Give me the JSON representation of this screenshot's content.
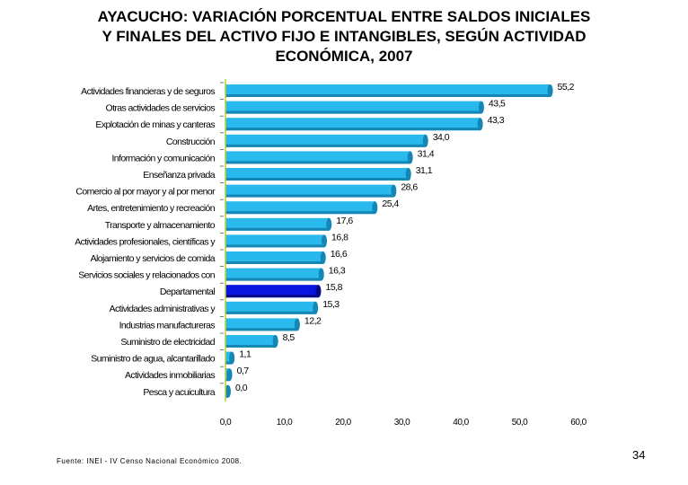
{
  "title": "AYACUCHO: VARIACIÓN PORCENTUAL ENTRE SALDOS INICIALES\nY FINALES DEL ACTIVO FIJO E INTANGIBLES, SEGÚN ACTIVIDAD\nECONÓMICA, 2007",
  "source": "Fuente: INEI - IV Censo Nacional Económico 2008.",
  "page_number": "34",
  "colors": {
    "bar": "#29B9EC",
    "bar_dark": "#1487B4",
    "highlight": "#0A14E0",
    "highlight_dark": "#050A8A",
    "axis": "#B4D23C"
  },
  "chart_data": {
    "type": "bar",
    "orientation": "horizontal",
    "categories": [
      "Actividades financieras y de seguros",
      "Otras actividades de servicios",
      "Explotación de minas y canteras",
      "Construcción",
      "Información y comunicación",
      "Enseñanza privada",
      "Comercio al por mayor y al por menor",
      "Artes, entretenimiento y recreación",
      "Transporte y almacenamiento",
      "Actividades profesionales, científicas y",
      "Alojamiento y servicios de comida",
      "Servicios sociales y relacionados con",
      "Departamental",
      "Actividades administrativas y",
      "Industrias manufactureras",
      "Suministro de electricidad",
      "Suministro de agua, alcantarillado",
      "Actividades inmobiliarias",
      "Pesca y acuicultura"
    ],
    "values": [
      55.2,
      43.5,
      43.3,
      34.0,
      31.4,
      31.1,
      28.6,
      25.4,
      17.6,
      16.8,
      16.6,
      16.3,
      15.8,
      15.3,
      12.2,
      8.5,
      1.1,
      0.7,
      0.0
    ],
    "value_labels": [
      "55,2",
      "43,5",
      "43,3",
      "34,0",
      "31,4",
      "31,1",
      "28,6",
      "25,4",
      "17,6",
      "16,8",
      "16,6",
      "16,3",
      "15,8",
      "15,3",
      "12,2",
      "8,5",
      "1,1",
      "0,7",
      "0,0"
    ],
    "highlight_category": "Departamental",
    "xlim": [
      0,
      60
    ],
    "x_ticks": [
      "0,0",
      "10,0",
      "20,0",
      "30,0",
      "40,0",
      "50,0",
      "60,0"
    ],
    "grid": false,
    "legend": "none"
  }
}
